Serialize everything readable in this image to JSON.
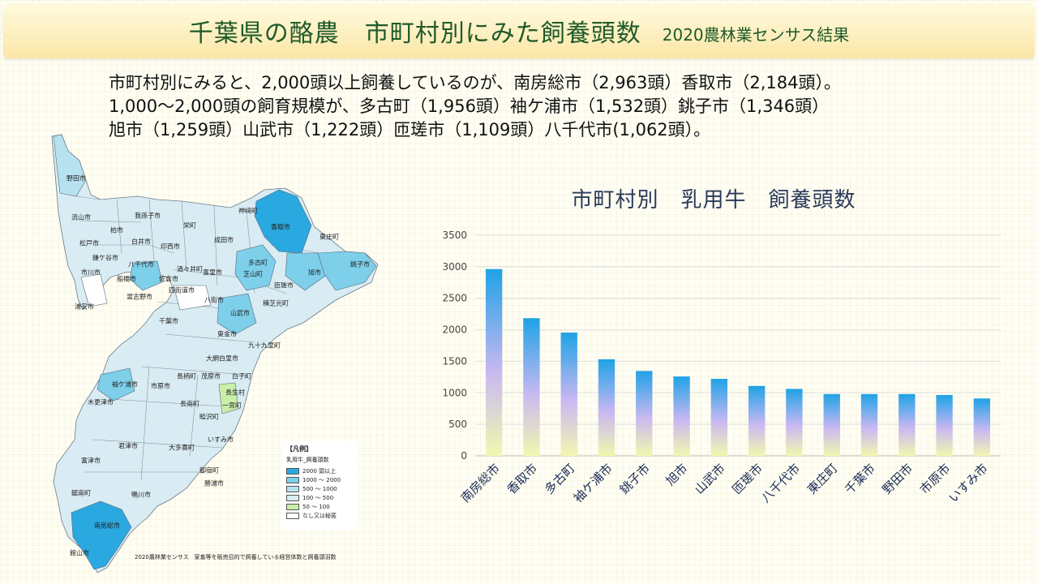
{
  "header": {
    "title": "千葉県の酪農　市町村別にみた飼養頭数",
    "subtitle": "2020農林業センサス結果"
  },
  "summary": {
    "line1": "市町村別にみると、2,000頭以上飼養しているのが、南房総市（2,963頭）香取市（2,184頭）。",
    "line2": "1,000～2,000頭の飼育規模が、多古町（1,956頭）袖ケ浦市（1,532頭）銚子市（1,346頭）",
    "line3": "旭市（1,259頭）山武市（1,222頭）匝瑳市（1,109頭）八千代市(1,062頭）。"
  },
  "map": {
    "labels": [
      "野田市",
      "流山市",
      "柏市",
      "我孫子市",
      "松戸市",
      "鎌ケ谷市",
      "市川市",
      "浦安市",
      "白井市",
      "印西市",
      "栄町",
      "成田市",
      "神崎町",
      "香取市",
      "東庄町",
      "銚子市",
      "多古町",
      "芝山町",
      "八千代市",
      "船橋市",
      "習志野市",
      "佐倉市",
      "酒々井町",
      "富里市",
      "四街道市",
      "八街市",
      "山武市",
      "匝瑳市",
      "旭市",
      "横芝光町",
      "千葉市",
      "東金市",
      "九十九里町",
      "大網白里市",
      "白子町",
      "茂原市",
      "長生村",
      "一宮町",
      "市原市",
      "長柄町",
      "長南町",
      "睦沢町",
      "いすみ市",
      "袖ケ浦市",
      "木更津市",
      "君津市",
      "大多喜町",
      "御宿町",
      "勝浦市",
      "富津市",
      "鴨川市",
      "鋸南町",
      "南房総市",
      "館山市"
    ],
    "legend": {
      "title": "【凡例】",
      "subtitle": "乳用牛_飼養頭数",
      "items": [
        {
          "label": "2000 頭以上",
          "color": "#2aa8e0"
        },
        {
          "label": "1000 ～ 2000",
          "color": "#7dcfea"
        },
        {
          "label": "500 ～ 1000",
          "color": "#b7e2ef"
        },
        {
          "label": "100 ～ 500",
          "color": "#d9ecf3"
        },
        {
          "label": "50 ～ 100",
          "color": "#c9eea8"
        },
        {
          "label": "なし又は秘匿",
          "color": "#ffffff"
        }
      ]
    },
    "source": "2020農林業センサス　家畜等を販売目的で飼養している経営体数と飼養頭羽数"
  },
  "chart_data": {
    "type": "bar",
    "title": "市町村別　乳用牛　飼養頭数",
    "categories": [
      "南房総市",
      "香取市",
      "多古町",
      "袖ケ浦市",
      "銚子市",
      "旭市",
      "山武市",
      "匝瑳市",
      "八千代市",
      "東庄町",
      "千葉市",
      "野田市",
      "市原市",
      "いすみ市"
    ],
    "values": [
      2963,
      2184,
      1956,
      1532,
      1346,
      1259,
      1222,
      1109,
      1062,
      980,
      980,
      980,
      965,
      910
    ],
    "ylim": [
      0,
      3500
    ],
    "yticks": [
      0,
      500,
      1000,
      1500,
      2000,
      2500,
      3000,
      3500
    ],
    "grid": true,
    "colors": {
      "top": "#1fa2e6",
      "mid": "#c9b8f2",
      "bottom": "#f2f7b0"
    }
  }
}
